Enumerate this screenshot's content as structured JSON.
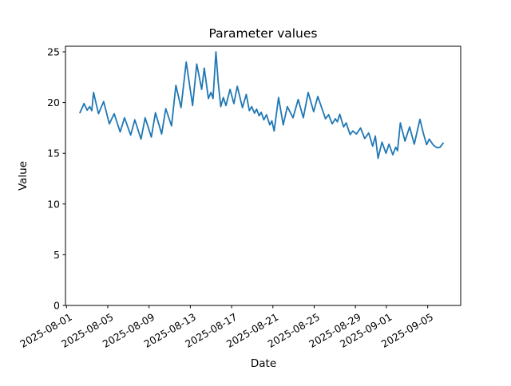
{
  "figure": {
    "background_color": "#ffffff",
    "frame_color": "#000000",
    "line_color": "#1f77b4"
  },
  "chart_data": {
    "type": "line",
    "title": "Parameter values",
    "xlabel": "Date",
    "ylabel": "Value",
    "grid": false,
    "legend": null,
    "x_unit": "days since 2025-08-01",
    "xlim": [
      -0.1,
      38.2
    ],
    "ylim": [
      0,
      25.55
    ],
    "y_ticks": [
      0,
      5,
      10,
      15,
      20,
      25
    ],
    "x_ticks": [
      {
        "offset": 0,
        "label": "2025-08-01"
      },
      {
        "offset": 4,
        "label": "2025-08-05"
      },
      {
        "offset": 8,
        "label": "2025-08-09"
      },
      {
        "offset": 12,
        "label": "2025-08-13"
      },
      {
        "offset": 16,
        "label": "2025-08-17"
      },
      {
        "offset": 20,
        "label": "2025-08-21"
      },
      {
        "offset": 24,
        "label": "2025-08-25"
      },
      {
        "offset": 28,
        "label": "2025-08-29"
      },
      {
        "offset": 31,
        "label": "2025-09-01"
      },
      {
        "offset": 35,
        "label": "2025-09-05"
      }
    ],
    "series": [
      {
        "name": "Parameter values",
        "x": [
          1.3,
          1.7,
          2.0,
          2.25,
          2.45,
          2.62,
          3.1,
          3.6,
          4.15,
          4.62,
          5.2,
          5.62,
          6.22,
          6.62,
          7.22,
          7.62,
          8.22,
          8.62,
          9.22,
          9.62,
          10.18,
          10.6,
          11.1,
          11.6,
          12.22,
          12.62,
          13.1,
          13.35,
          13.75,
          14.0,
          14.2,
          14.48,
          14.7,
          14.95,
          15.2,
          15.45,
          15.85,
          16.22,
          16.55,
          17.05,
          17.42,
          17.72,
          17.95,
          18.22,
          18.42,
          18.67,
          18.87,
          19.12,
          19.38,
          19.7,
          19.9,
          20.12,
          20.55,
          21.0,
          21.4,
          21.95,
          22.45,
          22.95,
          23.42,
          23.95,
          24.35,
          25.1,
          25.4,
          25.75,
          26.05,
          26.25,
          26.48,
          26.85,
          27.1,
          27.48,
          27.75,
          28.1,
          28.5,
          28.9,
          29.28,
          29.67,
          29.93,
          30.19,
          30.57,
          30.96,
          31.25,
          31.62,
          31.9,
          32.08,
          32.35,
          32.8,
          33.25,
          33.7,
          34.25,
          34.6,
          34.9,
          35.15,
          35.55,
          35.9,
          36.2,
          36.5
        ],
        "y": [
          19.0,
          19.9,
          19.25,
          19.6,
          19.2,
          21.0,
          18.9,
          20.1,
          17.9,
          18.9,
          17.1,
          18.5,
          16.8,
          18.3,
          16.4,
          18.5,
          16.6,
          19.0,
          16.9,
          19.4,
          17.7,
          21.7,
          19.5,
          24.0,
          19.7,
          23.8,
          21.3,
          23.4,
          20.4,
          21.0,
          20.4,
          25.0,
          22.0,
          19.6,
          20.5,
          19.7,
          21.3,
          19.9,
          21.6,
          19.5,
          20.8,
          19.2,
          19.6,
          18.95,
          19.35,
          18.7,
          19.05,
          18.3,
          18.8,
          17.8,
          18.2,
          17.2,
          20.5,
          17.8,
          19.6,
          18.5,
          20.3,
          18.5,
          21.0,
          19.1,
          20.6,
          18.4,
          18.8,
          17.9,
          18.4,
          18.1,
          18.85,
          17.6,
          18.0,
          16.85,
          17.2,
          16.9,
          17.5,
          16.45,
          17.0,
          15.7,
          16.7,
          14.5,
          16.1,
          15.0,
          15.9,
          14.85,
          15.6,
          15.25,
          18.0,
          16.2,
          17.6,
          15.9,
          18.35,
          16.9,
          15.85,
          16.4,
          15.8,
          15.55,
          15.6,
          16.0
        ]
      }
    ]
  }
}
